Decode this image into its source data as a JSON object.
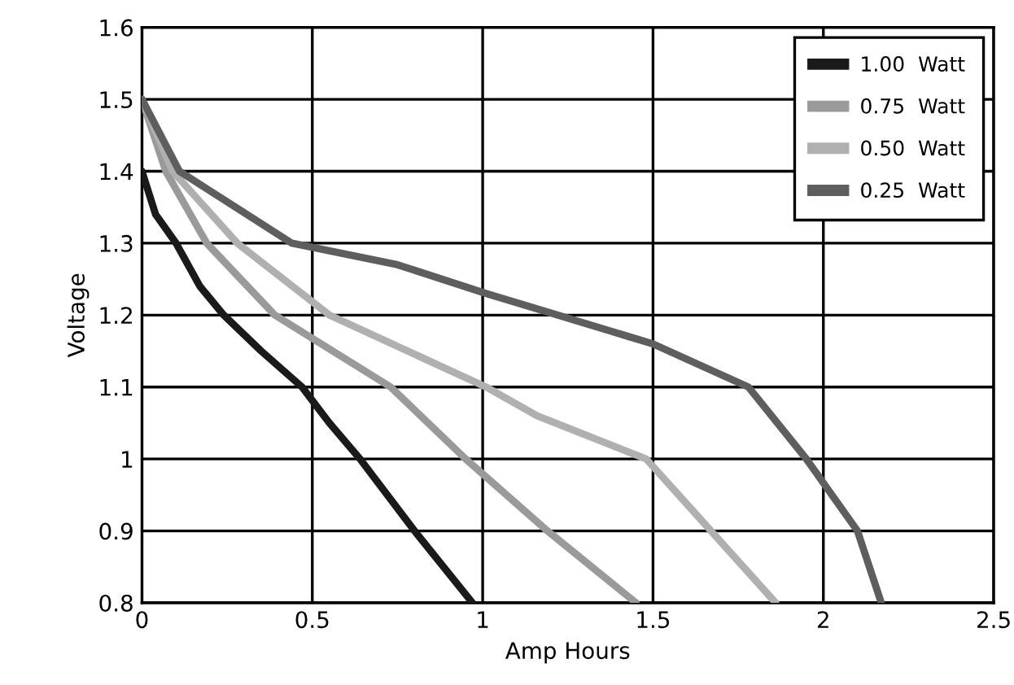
{
  "chart_data": {
    "type": "line",
    "xlabel": "Amp Hours",
    "ylabel": "Voltage",
    "xlim": [
      0,
      2.5
    ],
    "xticks": [
      0,
      0.5,
      1,
      1.5,
      2,
      2.5
    ],
    "ylim": [
      0.8,
      1.6
    ],
    "yticks": [
      0.8,
      0.9,
      1,
      1.1,
      1.2,
      1.3,
      1.4,
      1.5,
      1.6
    ],
    "grid": true,
    "legend": "top right",
    "marker": "none",
    "line_style": "solid",
    "series": [
      {
        "name": "1.00  Watt",
        "color": "#1a1a1a",
        "x": [
          0,
          0.04,
          0.1,
          0.17,
          0.24,
          0.35,
          0.47,
          0.55,
          0.64,
          0.8,
          0.97
        ],
        "values": [
          1.4,
          1.34,
          1.3,
          1.24,
          1.2,
          1.15,
          1.1,
          1.05,
          1.0,
          0.9,
          0.8
        ]
      },
      {
        "name": "0.75  Watt",
        "color": "#9a9a9a",
        "x": [
          0,
          0.07,
          0.19,
          0.39,
          0.73,
          0.95,
          1.19,
          1.45
        ],
        "values": [
          1.5,
          1.4,
          1.3,
          1.2,
          1.1,
          1.0,
          0.9,
          0.8
        ]
      },
      {
        "name": "0.50  Watt",
        "color": "#b0b0b0",
        "x": [
          0,
          0.09,
          0.28,
          0.55,
          1.01,
          1.16,
          1.48,
          1.67,
          1.86
        ],
        "values": [
          1.5,
          1.4,
          1.3,
          1.2,
          1.1,
          1.06,
          1.0,
          0.9,
          0.8
        ]
      },
      {
        "name": "0.25  Watt",
        "color": "#5e5e5e",
        "x": [
          0,
          0.11,
          0.44,
          0.75,
          1.01,
          1.22,
          1.5,
          1.78,
          1.95,
          2.1,
          2.17
        ],
        "values": [
          1.5,
          1.4,
          1.3,
          1.27,
          1.23,
          1.2,
          1.16,
          1.1,
          1.0,
          0.9,
          0.8
        ]
      }
    ]
  }
}
